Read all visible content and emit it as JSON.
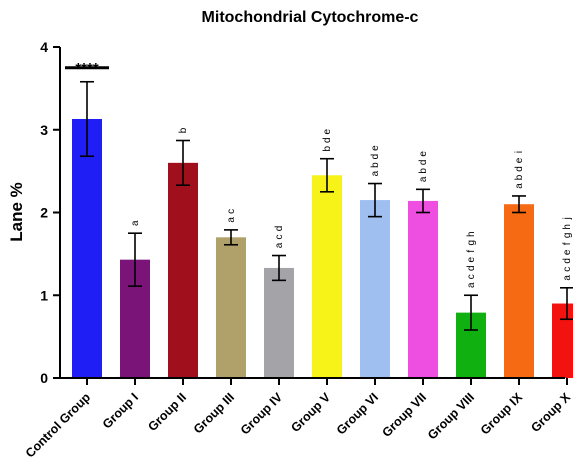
{
  "chart_data": {
    "type": "bar",
    "title": "Mitochondrial Cytochrome-c",
    "ylabel": "Lane %",
    "xlabel": "",
    "ylim": [
      0,
      4
    ],
    "yticks": [
      "0",
      "1",
      "2",
      "3",
      "4"
    ],
    "grid": false,
    "categories": [
      "Control Group",
      "Group I",
      "Group II",
      "Group III",
      "Group IV",
      "Group V",
      "Group VI",
      "Group VII",
      "Group VIII",
      "Group IX",
      "Group X"
    ],
    "values": [
      3.13,
      1.43,
      2.6,
      1.7,
      1.33,
      2.45,
      2.15,
      2.14,
      0.79,
      2.1,
      0.9
    ],
    "errors": [
      0.45,
      0.32,
      0.27,
      0.09,
      0.15,
      0.2,
      0.2,
      0.14,
      0.21,
      0.1,
      0.19
    ],
    "colors": [
      "#1f1ff5",
      "#7a1478",
      "#a00f1c",
      "#b0a06a",
      "#a3a3a8",
      "#f7f218",
      "#9ebff0",
      "#ee4fe0",
      "#10b010",
      "#f56a12",
      "#f2120f"
    ],
    "significance": [
      [],
      [
        "a"
      ],
      [
        "b"
      ],
      [
        "a",
        "c"
      ],
      [
        "a",
        "c",
        "d"
      ],
      [
        "b",
        "d",
        "e"
      ],
      [
        "a",
        "b",
        "d",
        "e"
      ],
      [
        "a",
        "b",
        "d",
        "e"
      ],
      [
        "a",
        "c",
        "d",
        "e",
        "f",
        "g",
        "h"
      ],
      [
        "a",
        "b",
        "d",
        "e",
        "i"
      ],
      [
        "a",
        "c",
        "d",
        "e",
        "f",
        "g",
        "h",
        "j"
      ]
    ],
    "control_marker": "****"
  }
}
